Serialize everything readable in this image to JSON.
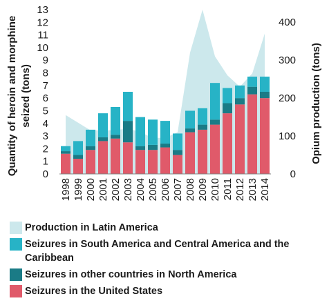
{
  "chart_data": {
    "type": "bar",
    "categories": [
      "1998",
      "1999",
      "2000",
      "2001",
      "2002",
      "2003",
      "2004",
      "2005",
      "2006",
      "2007",
      "2008",
      "2009",
      "2010",
      "2011",
      "2012",
      "2013",
      "2014"
    ],
    "ylabel": "Quantity of heroin and morphine seized (tons)",
    "y2label": "Opium production (tons)",
    "ylim": [
      0,
      13
    ],
    "y2lim": [
      0,
      433
    ],
    "yticks": [
      "0",
      "1",
      "2",
      "3",
      "4",
      "5",
      "6",
      "7",
      "8",
      "9",
      "10",
      "11",
      "12",
      "13"
    ],
    "y2ticks": [
      "0",
      "100",
      "200",
      "300",
      "400"
    ],
    "stacked": true,
    "series": [
      {
        "name": "Seizures in the United States",
        "color": "#e05a6a",
        "values": [
          1.6,
          1.2,
          1.9,
          2.6,
          2.8,
          2.5,
          1.9,
          1.9,
          2.1,
          1.5,
          3.3,
          3.5,
          3.9,
          4.8,
          5.5,
          6.3,
          6.0
        ]
      },
      {
        "name": "Seizures in other countries in North America",
        "color": "#1a7b86",
        "values": [
          0.2,
          0.3,
          0.3,
          0.3,
          0.3,
          1.7,
          0.3,
          0.4,
          0.3,
          0.4,
          0.3,
          0.4,
          0.4,
          0.8,
          0.5,
          0.6,
          0.5
        ]
      },
      {
        "name": "Seizures in South America and Central America and the Caribbean",
        "color": "#27b3c6",
        "values": [
          0.4,
          1.1,
          1.3,
          1.9,
          2.2,
          2.3,
          2.3,
          2.0,
          1.8,
          1.3,
          1.4,
          1.3,
          2.9,
          1.2,
          1.0,
          0.8,
          1.2
        ]
      },
      {
        "name": "Production in Latin America",
        "color": "#cce8ec",
        "type": "area",
        "axis": "right",
        "values": [
          155,
          135,
          115,
          115,
          115,
          120,
          110,
          95,
          95,
          110,
          320,
          433,
          310,
          260,
          230,
          265,
          370
        ]
      }
    ],
    "legend": [
      {
        "label": "Production in Latin America",
        "color": "#cce8ec"
      },
      {
        "label": "Seizures in South America and Central America and the Caribbean",
        "color": "#27b3c6"
      },
      {
        "label": "Seizures in other countries in North America",
        "color": "#1a7b86"
      },
      {
        "label": "Seizures in the United States",
        "color": "#e05a6a"
      }
    ]
  }
}
